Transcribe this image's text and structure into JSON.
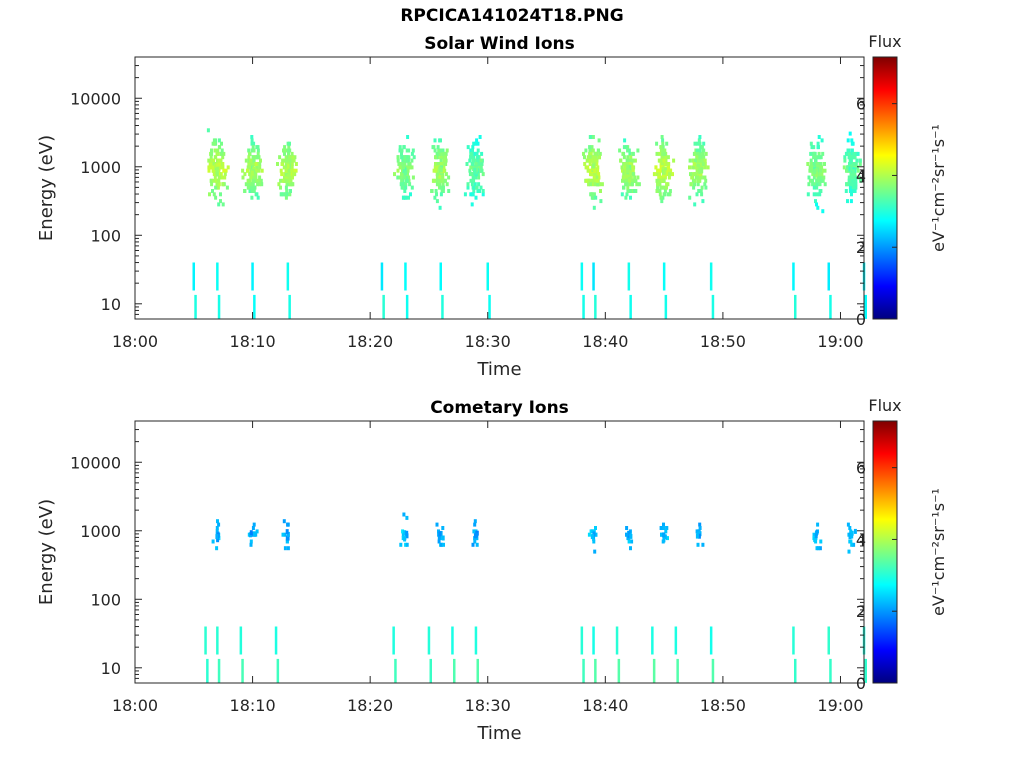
{
  "title": "RPCICA141024T18.PNG",
  "colorbar_gradient": [
    "#00007f",
    "#0000ff",
    "#007fff",
    "#00ffff",
    "#7fff7f",
    "#ffff00",
    "#ff7f00",
    "#ff0000",
    "#7f0000"
  ],
  "chart_data": [
    {
      "type": "heatmap",
      "title": "Solar Wind Ions",
      "xlabel": "Time",
      "ylabel": "Energy (eV)",
      "x_axis": {
        "unit": "time",
        "range": [
          "18:00",
          "19:02"
        ],
        "ticks": [
          "18:00",
          "18:10",
          "18:20",
          "18:30",
          "18:40",
          "18:50",
          "19:00"
        ]
      },
      "y_axis": {
        "scale": "log",
        "range": [
          6,
          40000
        ],
        "ticks": [
          10,
          100,
          1000,
          10000
        ],
        "tick_labels": [
          "10",
          "100",
          "1000",
          "10000"
        ]
      },
      "colorbar": {
        "title": "Flux",
        "label": "eV⁻¹cm⁻²sr⁻¹s⁻¹",
        "range": [
          0,
          7.3
        ],
        "ticks": [
          0,
          2,
          4,
          6
        ],
        "tick_labels": [
          "0",
          "2",
          "4",
          "6"
        ]
      },
      "scan_times": [
        "18:05",
        "18:07",
        "18:10",
        "18:13",
        "18:21",
        "18:23",
        "18:26",
        "18:30",
        "18:38",
        "18:39",
        "18:42",
        "18:45",
        "18:49",
        "18:56",
        "18:59",
        "19:02"
      ],
      "bursts": [
        {
          "center": "18:07",
          "peak_energy": 900,
          "peak_flux": 4.2
        },
        {
          "center": "18:10",
          "peak_energy": 900,
          "peak_flux": 4.0
        },
        {
          "center": "18:13",
          "peak_energy": 900,
          "peak_flux": 4.1
        },
        {
          "center": "18:23",
          "peak_energy": 900,
          "peak_flux": 3.8
        },
        {
          "center": "18:26",
          "peak_energy": 900,
          "peak_flux": 4.0
        },
        {
          "center": "18:29",
          "peak_energy": 900,
          "peak_flux": 3.6
        },
        {
          "center": "18:39",
          "peak_energy": 900,
          "peak_flux": 4.2
        },
        {
          "center": "18:42",
          "peak_energy": 900,
          "peak_flux": 4.0
        },
        {
          "center": "18:45",
          "peak_energy": 900,
          "peak_flux": 4.2
        },
        {
          "center": "18:48",
          "peak_energy": 900,
          "peak_flux": 4.0
        },
        {
          "center": "18:58",
          "peak_energy": 900,
          "peak_flux": 3.8
        },
        {
          "center": "19:01",
          "peak_energy": 900,
          "peak_flux": 3.6
        }
      ]
    },
    {
      "type": "heatmap",
      "title": "Cometary Ions",
      "xlabel": "Time",
      "ylabel": "Energy (eV)",
      "x_axis": {
        "unit": "time",
        "range": [
          "18:00",
          "19:02"
        ],
        "ticks": [
          "18:00",
          "18:10",
          "18:20",
          "18:30",
          "18:40",
          "18:50",
          "19:00"
        ]
      },
      "y_axis": {
        "scale": "log",
        "range": [
          6,
          40000
        ],
        "ticks": [
          10,
          100,
          1000,
          10000
        ],
        "tick_labels": [
          "10",
          "100",
          "1000",
          "10000"
        ]
      },
      "colorbar": {
        "title": "Flux",
        "label": "eV⁻¹cm⁻²sr⁻¹s⁻¹",
        "range": [
          0,
          7.3
        ],
        "ticks": [
          0,
          2,
          4,
          6
        ],
        "tick_labels": [
          "0",
          "2",
          "4",
          "6"
        ]
      },
      "scan_times": [
        "18:06",
        "18:07",
        "18:09",
        "18:12",
        "18:22",
        "18:25",
        "18:27",
        "18:29",
        "18:38",
        "18:39",
        "18:41",
        "18:44",
        "18:46",
        "18:49",
        "18:56",
        "18:59",
        "19:02"
      ],
      "bursts": [
        {
          "center": "18:07",
          "peak_energy": 850,
          "peak_flux": 2.4
        },
        {
          "center": "18:10",
          "peak_energy": 850,
          "peak_flux": 2.3
        },
        {
          "center": "18:13",
          "peak_energy": 850,
          "peak_flux": 2.3
        },
        {
          "center": "18:23",
          "peak_energy": 850,
          "peak_flux": 2.4
        },
        {
          "center": "18:26",
          "peak_energy": 850,
          "peak_flux": 2.3
        },
        {
          "center": "18:29",
          "peak_energy": 850,
          "peak_flux": 2.3
        },
        {
          "center": "18:39",
          "peak_energy": 850,
          "peak_flux": 2.4
        },
        {
          "center": "18:42",
          "peak_energy": 850,
          "peak_flux": 2.3
        },
        {
          "center": "18:45",
          "peak_energy": 850,
          "peak_flux": 2.3
        },
        {
          "center": "18:48",
          "peak_energy": 850,
          "peak_flux": 2.3
        },
        {
          "center": "18:58",
          "peak_energy": 850,
          "peak_flux": 2.4
        },
        {
          "center": "19:01",
          "peak_energy": 850,
          "peak_flux": 2.4
        }
      ]
    }
  ]
}
